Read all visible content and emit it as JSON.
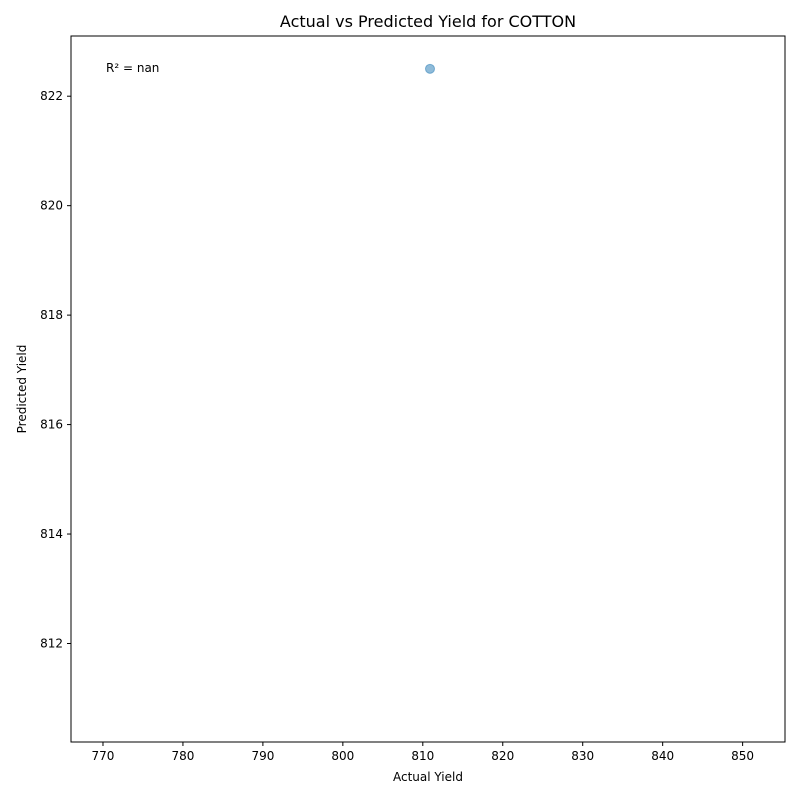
{
  "chart_data": {
    "type": "scatter",
    "title": "Actual vs Predicted Yield for COTTON",
    "xlabel": "Actual Yield",
    "ylabel": "Predicted Yield",
    "xlim": [
      766.0,
      855.3
    ],
    "ylim": [
      810.2,
      823.1
    ],
    "xticks": [
      770,
      780,
      790,
      800,
      810,
      820,
      830,
      840,
      850
    ],
    "yticks": [
      812,
      814,
      816,
      818,
      820,
      822
    ],
    "points": [
      {
        "x": 810.9,
        "y": 822.5
      }
    ],
    "point_color": "#1f77b4",
    "point_alpha": 0.5,
    "annotation": "R² = nan",
    "grid": false,
    "legend": "none"
  }
}
